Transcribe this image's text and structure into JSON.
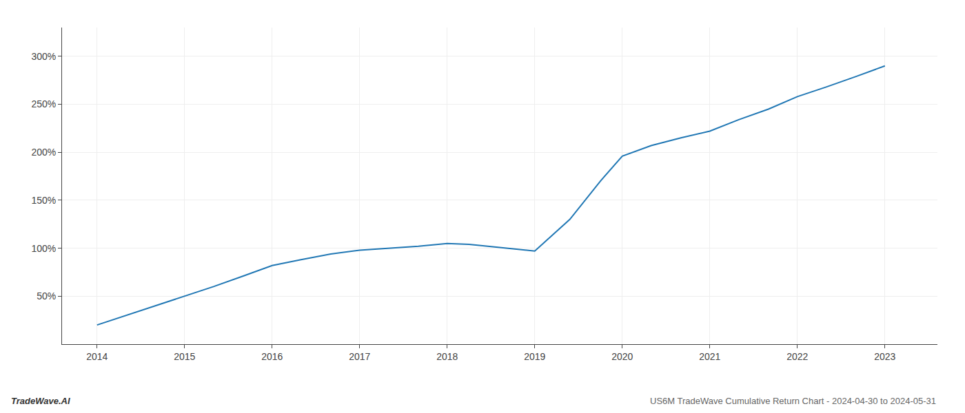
{
  "chart_data": {
    "type": "line",
    "title": "US6M TradeWave Cumulative Return Chart - 2024-04-30 to 2024-05-31",
    "annotations": [
      "TradeWave.AI"
    ],
    "x": [
      2014,
      2014.33,
      2014.67,
      2015,
      2015.33,
      2015.67,
      2016,
      2016.33,
      2016.67,
      2017,
      2017.33,
      2017.67,
      2018,
      2018.25,
      2018.58,
      2019,
      2019.4,
      2019.75,
      2020,
      2020.33,
      2020.67,
      2021,
      2021.33,
      2021.67,
      2022,
      2022.33,
      2022.67,
      2023
    ],
    "values": [
      20,
      30,
      40,
      50,
      60,
      71,
      82,
      88,
      94,
      98,
      100,
      102,
      105,
      104,
      101,
      97,
      130,
      170,
      196,
      207,
      215,
      222,
      234,
      245,
      258,
      268,
      279,
      290
    ],
    "color": "#2077b4",
    "xlim": [
      2013.6,
      2023.6
    ],
    "xticks": [
      2014,
      2015,
      2016,
      2017,
      2018,
      2019,
      2020,
      2021,
      2022,
      2023
    ],
    "ylim": [
      0,
      330
    ],
    "yticks": [
      {
        "value": 50,
        "label": "50%"
      },
      {
        "value": 100,
        "label": "100%"
      },
      {
        "value": 150,
        "label": "150%"
      },
      {
        "value": 200,
        "label": "200%"
      },
      {
        "value": 250,
        "label": "250%"
      },
      {
        "value": 300,
        "label": "300%"
      }
    ],
    "grid": true
  }
}
